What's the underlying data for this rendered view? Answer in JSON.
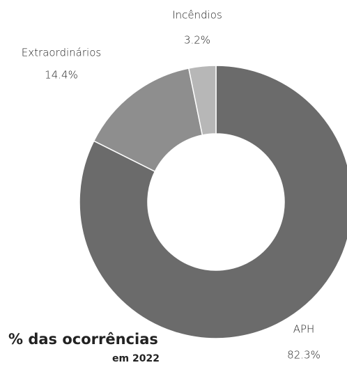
{
  "chart_data": {
    "type": "donut",
    "title": "% das ocorrências",
    "subtitle": "em 2022",
    "categories": [
      "APH",
      "Extraordinários",
      "Incêndios"
    ],
    "values": [
      82.3,
      14.4,
      3.2
    ],
    "value_labels": [
      "82.3%",
      "14.4%",
      "3.2%"
    ],
    "colors": [
      "#6b6b6b",
      "#8e8e8e",
      "#b7b7b7"
    ]
  }
}
